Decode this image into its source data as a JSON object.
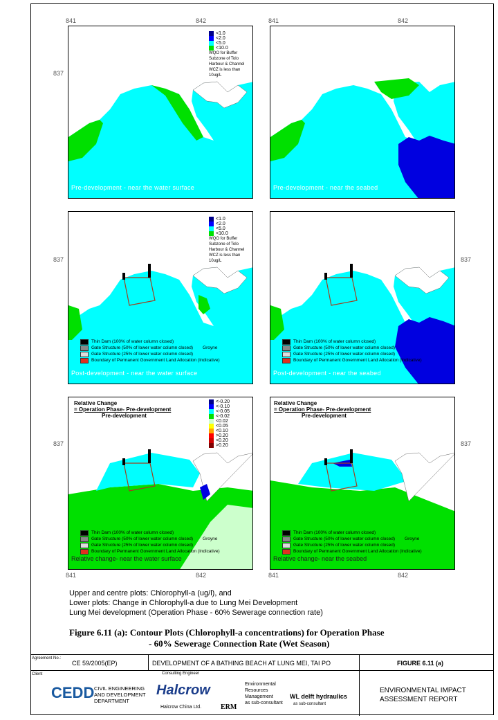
{
  "axes": {
    "x_left": "841",
    "x_right": "842",
    "y_mid": "837"
  },
  "legend_conc": {
    "items": [
      {
        "label": "<1.0",
        "color": "#00008b"
      },
      {
        "label": "<2.0",
        "color": "#0000ff"
      },
      {
        "label": "<5.0",
        "color": "#00ffff"
      },
      {
        "label": "<10.0",
        "color": "#00e000"
      }
    ],
    "note": [
      "WQO for Buffer",
      "Subzone of Tolo",
      "Harbour & Channel",
      "WCZ is less than",
      "10ug/L"
    ]
  },
  "legend_change": {
    "items": [
      {
        "label": "<-0.20",
        "color": "#00008b"
      },
      {
        "label": "<-0.10",
        "color": "#0000ff"
      },
      {
        "label": "<-0.05",
        "color": "#00ffff"
      },
      {
        "label": "<-0.02",
        "color": "#00e000"
      },
      {
        "label": "<0.02",
        "color": "#ccffcc"
      },
      {
        "label": "<0.05",
        "color": "#ffff00"
      },
      {
        "label": "<0.10",
        "color": "#ffa500"
      },
      {
        "label": ">0.20",
        "color": "#ff0000"
      },
      {
        "label": "<0.20",
        "color": "#d00000"
      },
      {
        "label": ">0.20",
        "color": "#800000"
      }
    ]
  },
  "groyne_legend": {
    "thin_dam": "Thin Dam (100% of water column closed)",
    "gate50": "Gate Structure (50% of lower water column closed)",
    "gate25": "Gate Structure (25% of lower water column closed)",
    "boundary": "Boundary of Permanent Government Land Allocation (Indicative)",
    "groyne": "Groyne"
  },
  "relative": {
    "l1": "Relative Change",
    "l2": "= Operation Phase- Pre-development",
    "l3": "Pre-development"
  },
  "captions": {
    "p1": "Pre-development - near the water surface",
    "p2": "Pre-development - near the seabed",
    "p3": "Post-development - near the water surface",
    "p4": "Post-development - near the seabed",
    "p5": "Relative change- near the water surface",
    "p6": "Relative change- near the seabed"
  },
  "notes": [
    "Upper and centre plots: Chlorophyll-a (ug/l), and",
    "Lower plots: Change in Chlorophyll-a due to Lung Mei Development",
    "Lung Mei development (Operation Phase - 60% Sewerage connection rate)"
  ],
  "figure": {
    "line1": "Figure 6.11 (a):  Contour Plots (Chlorophyll-a concentrations) for Operation Phase",
    "line2": "- 60% Sewerage Connection Rate (Wet Season)"
  },
  "footer": {
    "agreement_label": "Agreement No.:",
    "agreement": "CE 59/2005(EP)",
    "project": "DEVELOPMENT OF A BATHING BEACH AT LUNG MEI, TAI PO",
    "figure_no": "FIGURE 6.11 (a)",
    "client_label": "Client",
    "cedd": "CEDD",
    "cedd_name": [
      "CIVIL ENGINEERING",
      "AND DEVELOPMENT",
      "DEPARTMENT"
    ],
    "consulting_label": "Consulting Engineer",
    "halcrow": "Halcrow",
    "halcrow_sub": "Halcrow China Ltd.",
    "erm": "ERM",
    "erm_text": [
      "Environmental",
      "Resources",
      "Management",
      "as sub-consultant"
    ],
    "wl": "WL",
    "delft": "delft hydraulics",
    "delft_sub": "as sub-consultant",
    "report": [
      "ENVIRONMENTAL IMPACT",
      "ASSESSMENT REPORT"
    ]
  }
}
